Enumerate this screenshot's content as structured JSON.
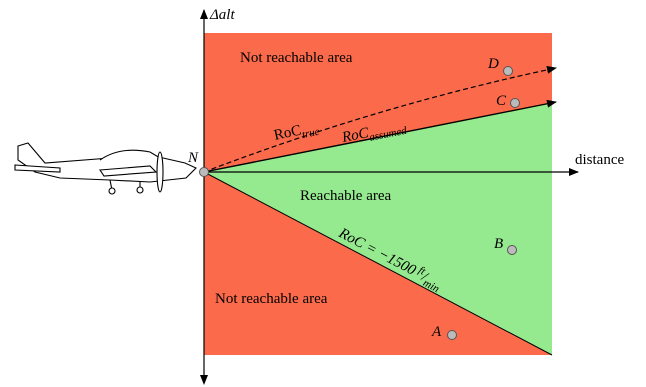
{
  "axes": {
    "y_label": "Δalt",
    "x_label": "distance",
    "origin": "N"
  },
  "regions": {
    "top": "Not reachable area",
    "middle": "Reachable area",
    "bottom": "Not reachable area"
  },
  "lines": {
    "roc_true": {
      "main": "RoC",
      "sub": "true"
    },
    "roc_assumed": {
      "main": "RoC",
      "sub": "assumed"
    },
    "roc_limit": {
      "main": "RoC = −1500",
      "num": "ft",
      "den": "min"
    }
  },
  "points": {
    "a": "A",
    "b": "B",
    "c": "C",
    "d": "D"
  }
}
